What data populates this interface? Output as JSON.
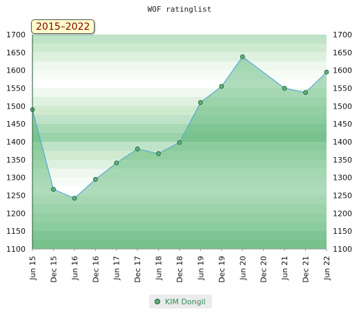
{
  "chart_data": {
    "type": "line",
    "title": "WOF ratinglist",
    "period": "2015–2022",
    "x": [
      "Jun 15",
      "Dec 15",
      "Jun 16",
      "Dec 16",
      "Jun 17",
      "Dec 17",
      "Jun 18",
      "Dec 18",
      "Jun 19",
      "Dec 19",
      "Jun 20",
      "Dec 20",
      "Jun 21",
      "Dec 21",
      "Jun 22"
    ],
    "series": [
      {
        "name": "KIM Dongil",
        "values": [
          1490,
          1267,
          1242,
          1295,
          1341,
          1380,
          1367,
          1398,
          1510,
          1555,
          1638,
          null,
          1550,
          1538,
          1595
        ]
      }
    ],
    "ylim": [
      1100,
      1700
    ],
    "yticks": [
      1100,
      1150,
      1200,
      1250,
      1300,
      1350,
      1400,
      1450,
      1500,
      1550,
      1600,
      1650,
      1700
    ],
    "colors": {
      "line": "#5aa9d6",
      "marker": "#59b478",
      "marker_stroke": "#225533",
      "legend_text": "#2e8b57",
      "period_text": "#800000",
      "period_bg": "#ffffcc"
    },
    "legend_position": "bottom-center"
  }
}
